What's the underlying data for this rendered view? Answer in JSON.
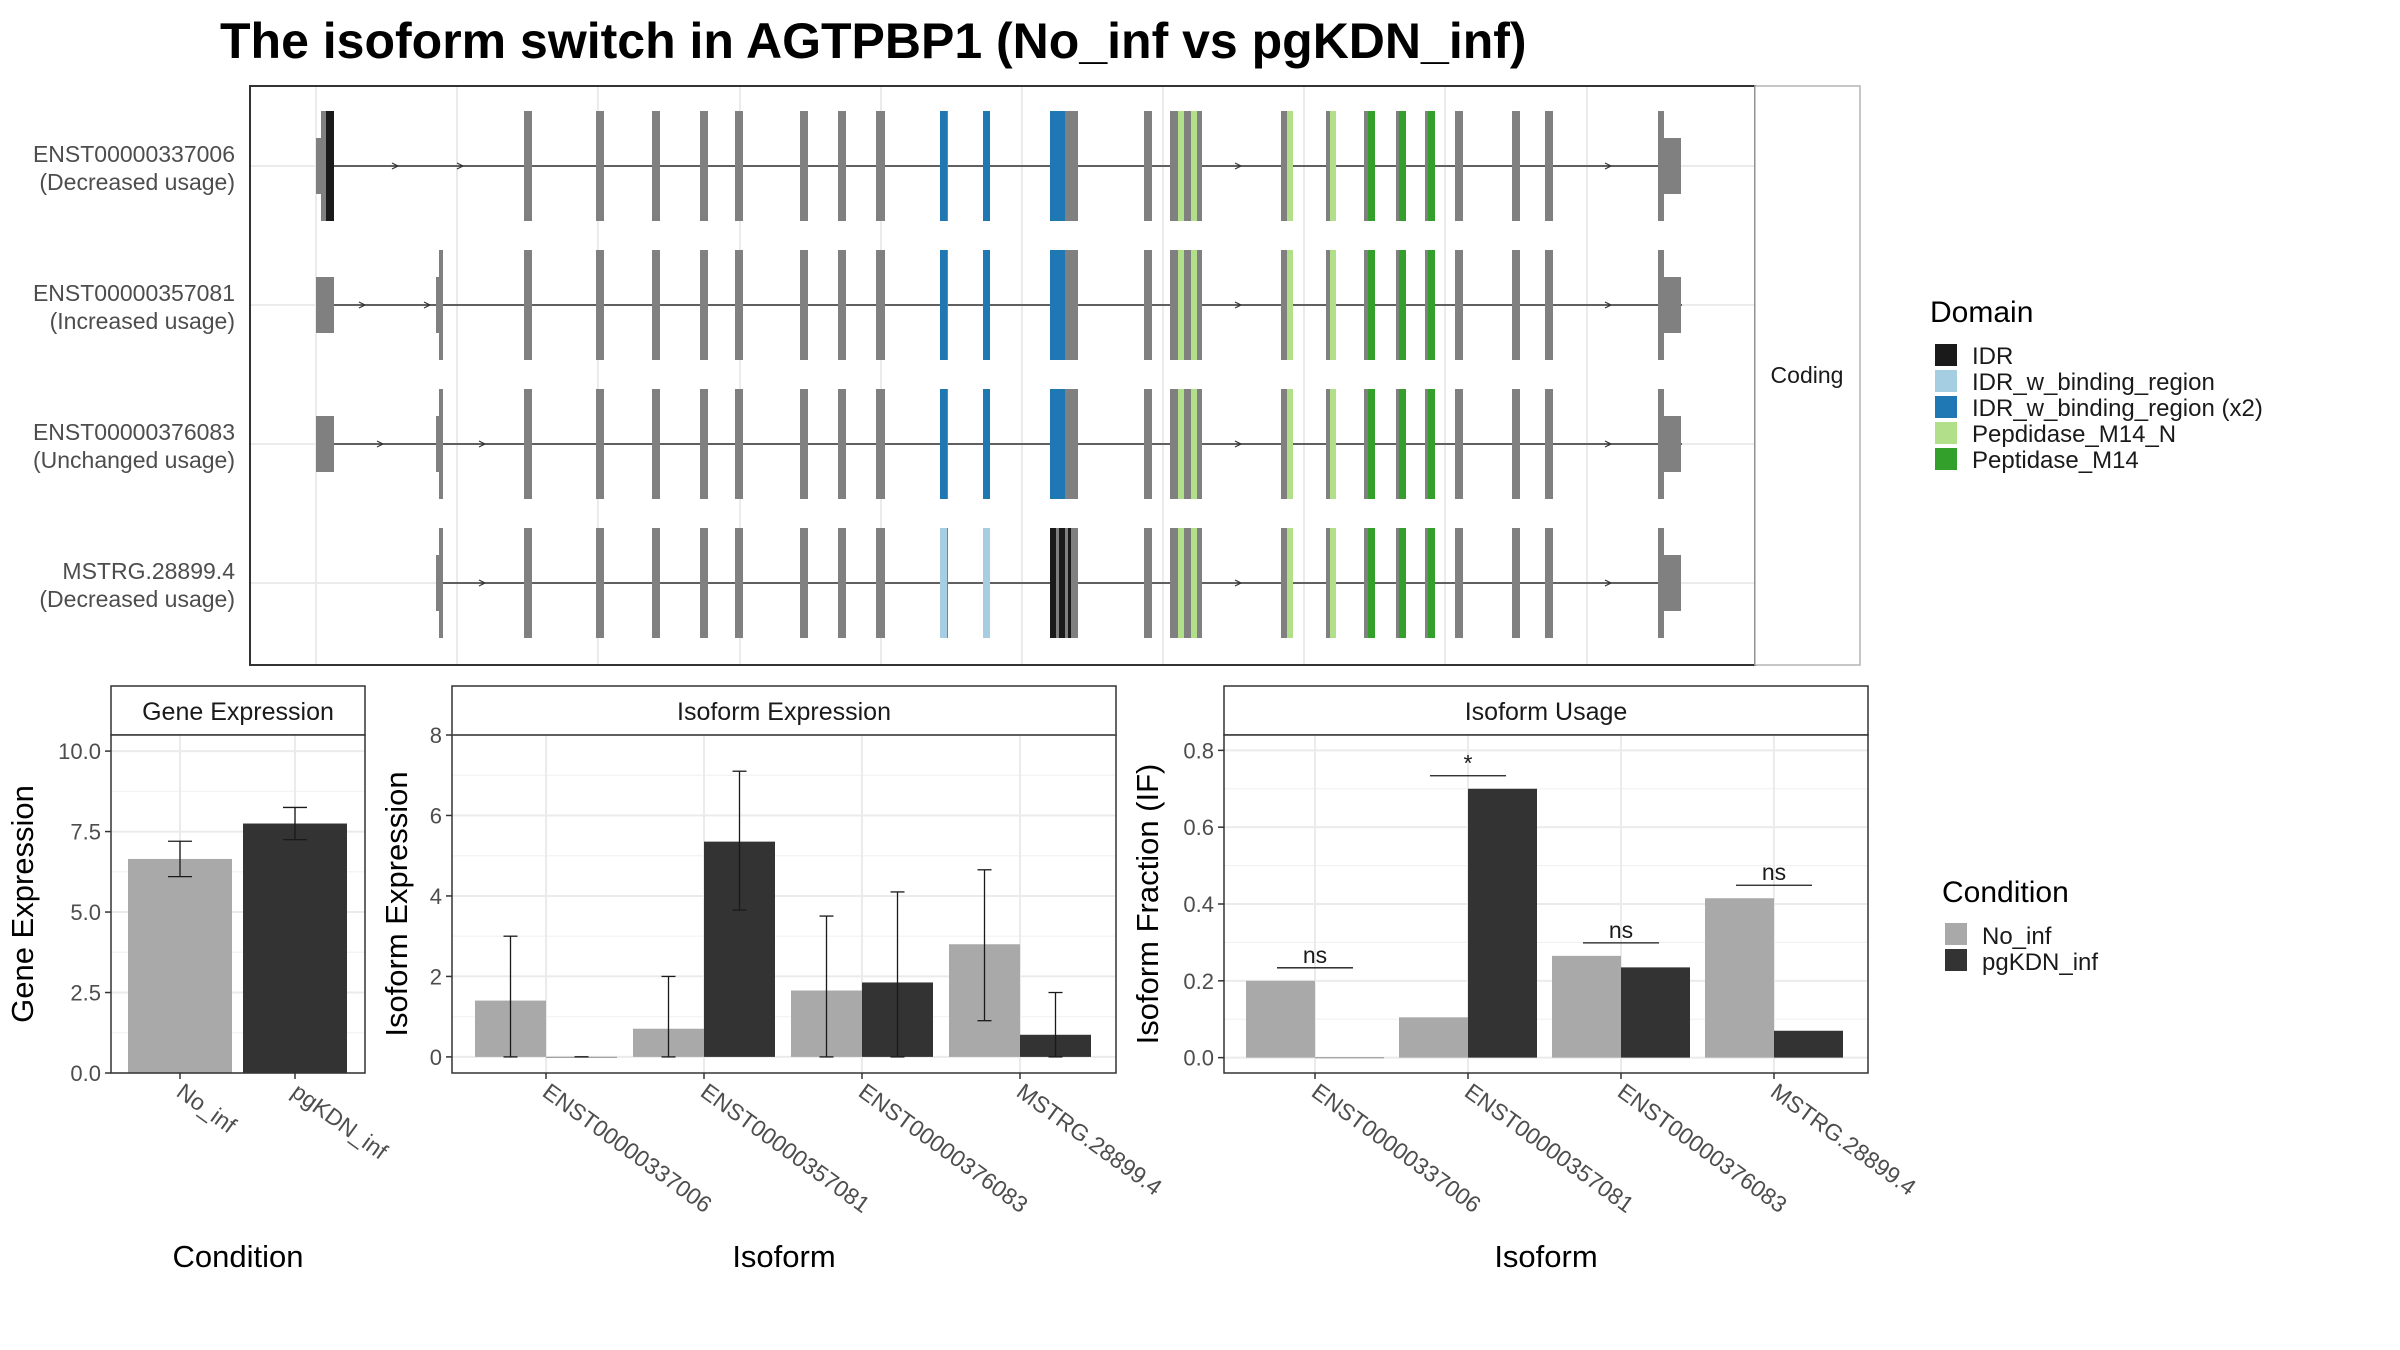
{
  "title": "The isoform switch in AGTPBP1 (No_inf vs pgKDN_inf)",
  "colors": {
    "no_inf": "#a9a9a9",
    "pgkdn_inf": "#333333",
    "exon": "#808080",
    "IDR": "#1a1a1a",
    "IDR_w_binding_region": "#a6cee3",
    "IDR_w_binding_region (x2)": "#1f78b4",
    "Pepdidase_M14_N": "#b2df8a",
    "Peptidase_M14": "#33a02c"
  },
  "chart_data": [
    {
      "type": "other",
      "panel": "transcript-structure",
      "strip_label": "Coding",
      "isoforms": [
        {
          "id": "ENST00000337006",
          "usage": "(Decreased usage)"
        },
        {
          "id": "ENST00000357081",
          "usage": "(Increased usage)"
        },
        {
          "id": "ENST00000376083",
          "usage": "(Unchanged usage)"
        },
        {
          "id": "MSTRG.28899.4",
          "usage": "(Decreased usage)"
        }
      ],
      "legend": {
        "title": "Domain",
        "entries": [
          {
            "key": "IDR",
            "label": "IDR"
          },
          {
            "key": "IDR_w_binding_region",
            "label": "IDR_w_binding_region"
          },
          {
            "key": "IDR_w_binding_region (x2)",
            "label": "IDR_w_binding_region (x2)"
          },
          {
            "key": "Pepdidase_M14_N",
            "label": "Pepdidase_M14_N"
          },
          {
            "key": "Peptidase_M14",
            "label": "Peptidase_M14"
          }
        ]
      }
    },
    {
      "type": "bar",
      "panel": "gene-expression",
      "strip": "Gene Expression",
      "xlabel": "Condition",
      "ylabel": "Gene Expression",
      "ylim": [
        0,
        10.5
      ],
      "yticks": [
        0.0,
        2.5,
        5.0,
        7.5,
        10.0
      ],
      "ytick_labels": [
        "0.0",
        "2.5",
        "5.0",
        "7.5",
        "10.0"
      ],
      "categories": [
        "No_inf",
        "pgKDN_inf"
      ],
      "values": [
        6.65,
        7.75
      ],
      "err_low": [
        6.1,
        7.25
      ],
      "err_high": [
        7.2,
        8.25
      ]
    },
    {
      "type": "bar",
      "panel": "isoform-expression",
      "strip": "Isoform Expression",
      "xlabel": "Isoform",
      "ylabel": "Isoform Expression",
      "ylim": [
        -0.4,
        8.0
      ],
      "yticks": [
        0,
        2,
        4,
        6,
        8
      ],
      "ytick_labels": [
        "0",
        "2",
        "4",
        "6",
        "8"
      ],
      "categories": [
        "ENST00000337006",
        "ENST00000357081",
        "ENST00000376083",
        "MSTRG.28899.4"
      ],
      "series": [
        {
          "name": "No_inf",
          "values": [
            1.4,
            0.7,
            1.65,
            2.8
          ],
          "err_low": [
            0.0,
            0.0,
            0.0,
            0.9
          ],
          "err_high": [
            3.0,
            2.0,
            3.5,
            4.65
          ]
        },
        {
          "name": "pgKDN_inf",
          "values": [
            0.0,
            5.35,
            1.85,
            0.55
          ],
          "err_low": [
            0.0,
            3.65,
            0.0,
            0.0
          ],
          "err_high": [
            0.0,
            7.1,
            4.1,
            1.6
          ]
        }
      ]
    },
    {
      "type": "bar",
      "panel": "isoform-usage",
      "strip": "Isoform Usage",
      "xlabel": "Isoform",
      "ylabel": "Isoform Fraction (IF)",
      "ylim": [
        -0.04,
        0.84
      ],
      "yticks": [
        0.0,
        0.2,
        0.4,
        0.6,
        0.8
      ],
      "ytick_labels": [
        "0.0",
        "0.2",
        "0.4",
        "0.6",
        "0.8"
      ],
      "categories": [
        "ENST00000337006",
        "ENST00000357081",
        "ENST00000376083",
        "MSTRG.28899.4"
      ],
      "series": [
        {
          "name": "No_inf",
          "values": [
            0.2,
            0.105,
            0.265,
            0.415
          ]
        },
        {
          "name": "pgKDN_inf",
          "values": [
            0.0,
            0.7,
            0.235,
            0.07
          ]
        }
      ],
      "significance": [
        "ns",
        "*",
        "ns",
        "ns"
      ]
    }
  ],
  "condition_legend": {
    "title": "Condition",
    "entries": [
      {
        "key": "no_inf",
        "label": "No_inf"
      },
      {
        "key": "pgkdn_inf",
        "label": "pgKDN_inf"
      }
    ]
  }
}
